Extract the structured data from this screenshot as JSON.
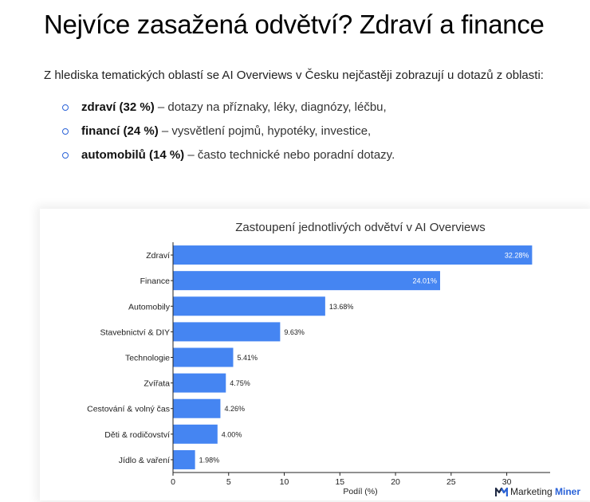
{
  "heading": "Nejvíce zasažená odvětví? Zdraví a finance",
  "intro": "Z hlediska tematických oblastí se AI Overviews v Česku nejčastěji zobrazují u dotazů z oblasti:",
  "bullets": [
    {
      "bold": "zdraví (32 %)",
      "text": " – dotazy na příznaky, léky, diagnózy, léčbu,"
    },
    {
      "bold": "financí (24 %)",
      "text": " – vysvětlení pojmů, hypotéky, investice,"
    },
    {
      "bold": "automobilů (14 %)",
      "text": " – často technické nebo poradní dotazy."
    }
  ],
  "brand": {
    "first": "Marketing",
    "second": "Miner",
    "icon": "marketing-miner-logo-icon"
  },
  "colors": {
    "bar": "#4585f2",
    "bullet": "#2b63d8"
  },
  "chart_data": {
    "type": "bar",
    "orientation": "horizontal",
    "title": "Zastoupení jednotlivých odvětví v AI Overviews",
    "xlabel": "Podíl (%)",
    "ylabel": "",
    "xlim": [
      0,
      33.9
    ],
    "xticks": [
      0,
      5,
      10,
      15,
      20,
      25,
      30
    ],
    "grid": false,
    "categories": [
      "Zdraví",
      "Finance",
      "Automobily",
      "Stavebnictví & DIY",
      "Technologie",
      "Zvířata",
      "Cestování & volný čas",
      "Děti & rodičovství",
      "Jídlo & vaření"
    ],
    "values": [
      32.28,
      24.01,
      13.68,
      9.63,
      5.41,
      4.75,
      4.26,
      4.0,
      1.98
    ],
    "data_labels": [
      "32.28%",
      "24.01%",
      "13.68%",
      "9.63%",
      "5.41%",
      "4.75%",
      "4.26%",
      "4.00%",
      "1.98%"
    ]
  }
}
